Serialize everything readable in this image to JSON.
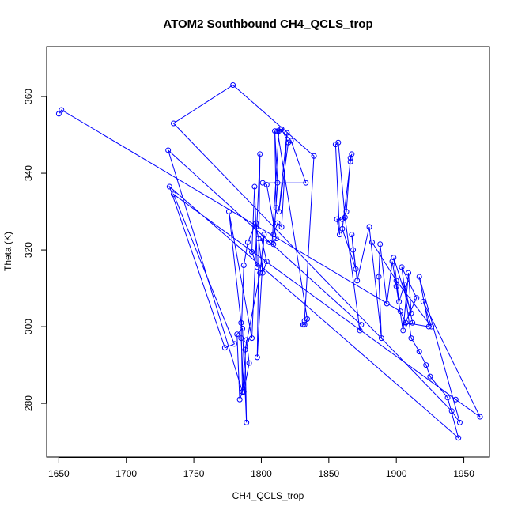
{
  "chart_data": {
    "type": "line",
    "title": "ATOM2 Southbound CH4_QCLS_trop",
    "xlabel": "CH4_QCLS_trop",
    "ylabel": "Theta (K)",
    "xlim": [
      1641,
      1969
    ],
    "ylim": [
      266,
      373
    ],
    "xticks": [
      1650,
      1700,
      1750,
      1800,
      1850,
      1900,
      1950
    ],
    "yticks": [
      280,
      300,
      320,
      340,
      360
    ],
    "grid": false,
    "markers": "open-circle",
    "color": "#0000ff",
    "series": [
      {
        "points": [
          [
            1650,
            355.5
          ],
          [
            1652,
            356.5
          ],
          [
            1903,
            304.0
          ],
          [
            1907,
            301.0
          ],
          [
            1924,
            300.0
          ],
          [
            1917,
            313.0
          ],
          [
            1947,
            275.0
          ],
          [
            1941,
            278.0
          ],
          [
            1735,
            353.0
          ],
          [
            1779,
            363.0
          ],
          [
            1839,
            344.5
          ],
          [
            1832,
            301.5
          ],
          [
            1831,
            300.5
          ],
          [
            1832,
            300.5
          ],
          [
            1834,
            302.0
          ],
          [
            1812,
            351.0
          ],
          [
            1814,
            351.5
          ],
          [
            1822,
            348.5
          ],
          [
            1833,
            337.5
          ],
          [
            1801,
            337.5
          ],
          [
            1804,
            337.0
          ],
          [
            1811,
            323.0
          ],
          [
            1808,
            322.0
          ],
          [
            1813,
            351.0
          ],
          [
            1815,
            351.5
          ],
          [
            1820,
            348.0
          ],
          [
            1813,
            330.0
          ],
          [
            1819,
            350.5
          ],
          [
            1815,
            326.0
          ],
          [
            1812,
            327.0
          ],
          [
            1809,
            324.0
          ],
          [
            1811,
            331.0
          ],
          [
            1810,
            351.0
          ],
          [
            1812,
            337.5
          ],
          [
            1809,
            321.5
          ],
          [
            1806,
            322.0
          ],
          [
            1800,
            323.0
          ],
          [
            1804,
            317.0
          ],
          [
            1801,
            314.0
          ],
          [
            1798,
            323.0
          ],
          [
            1796,
            326.0
          ],
          [
            1795,
            336.5
          ],
          [
            1793,
            319.5
          ],
          [
            1797,
            315.5
          ],
          [
            1796,
            327.0
          ],
          [
            1790,
            322.0
          ],
          [
            1787,
            316.0
          ],
          [
            1785,
            297.0
          ],
          [
            1787,
            283.0
          ],
          [
            1791,
            290.5
          ],
          [
            1789,
            296.5
          ],
          [
            1786,
            283.0
          ],
          [
            1784,
            281.0
          ],
          [
            1782,
            298.0
          ],
          [
            1786,
            299.5
          ],
          [
            1789,
            275.0
          ],
          [
            1788,
            294.0
          ],
          [
            1799,
            314.0
          ],
          [
            1802,
            324.0
          ],
          [
            1797,
            292.0
          ],
          [
            1799,
            345.0
          ],
          [
            1793,
            297.0
          ],
          [
            1776,
            330.0
          ],
          [
            1785,
            301.0
          ],
          [
            1786,
            283.0
          ],
          [
            1731,
            346.0
          ],
          [
            1874,
            300.5
          ],
          [
            1873,
            299.0
          ],
          [
            1862,
            328.5
          ],
          [
            1857,
            348.0
          ],
          [
            1855,
            347.5
          ],
          [
            1858,
            324.0
          ],
          [
            1856,
            328.0
          ],
          [
            1860,
            328.0
          ],
          [
            1863,
            330.0
          ],
          [
            1866,
            344.0
          ],
          [
            1867,
            345.0
          ],
          [
            1866,
            343.0
          ],
          [
            1860,
            325.5
          ],
          [
            1870,
            315.0
          ],
          [
            1868,
            320.0
          ],
          [
            1867,
            324.0
          ],
          [
            1871,
            312.0
          ],
          [
            1880,
            326.0
          ],
          [
            1889,
            297.0
          ],
          [
            1887,
            313.0
          ],
          [
            1888,
            321.5
          ],
          [
            1893,
            306.0
          ],
          [
            1897,
            317.0
          ],
          [
            1900,
            310.5
          ],
          [
            1905,
            299.0
          ],
          [
            1909,
            314.0
          ],
          [
            1911,
            303.5
          ],
          [
            1898,
            318.0
          ],
          [
            1902,
            306.5
          ],
          [
            1906,
            311.0
          ],
          [
            1912,
            301.0
          ],
          [
            1906,
            300.5
          ],
          [
            1915,
            307.5
          ],
          [
            1904,
            315.5
          ],
          [
            1911,
            297.0
          ],
          [
            1917,
            293.5
          ],
          [
            1922,
            290.0
          ],
          [
            1925,
            287.0
          ],
          [
            1938,
            281.5
          ],
          [
            1946,
            271.0
          ],
          [
            1732,
            336.5
          ],
          [
            1773,
            294.5
          ],
          [
            1780,
            295.5
          ],
          [
            1735,
            334.5
          ],
          [
            1944,
            281.0
          ],
          [
            1962,
            276.5
          ],
          [
            1920,
            306.5
          ],
          [
            1926,
            300.0
          ],
          [
            1900,
            312.0
          ],
          [
            1882,
            322.0
          ]
        ]
      }
    ]
  }
}
